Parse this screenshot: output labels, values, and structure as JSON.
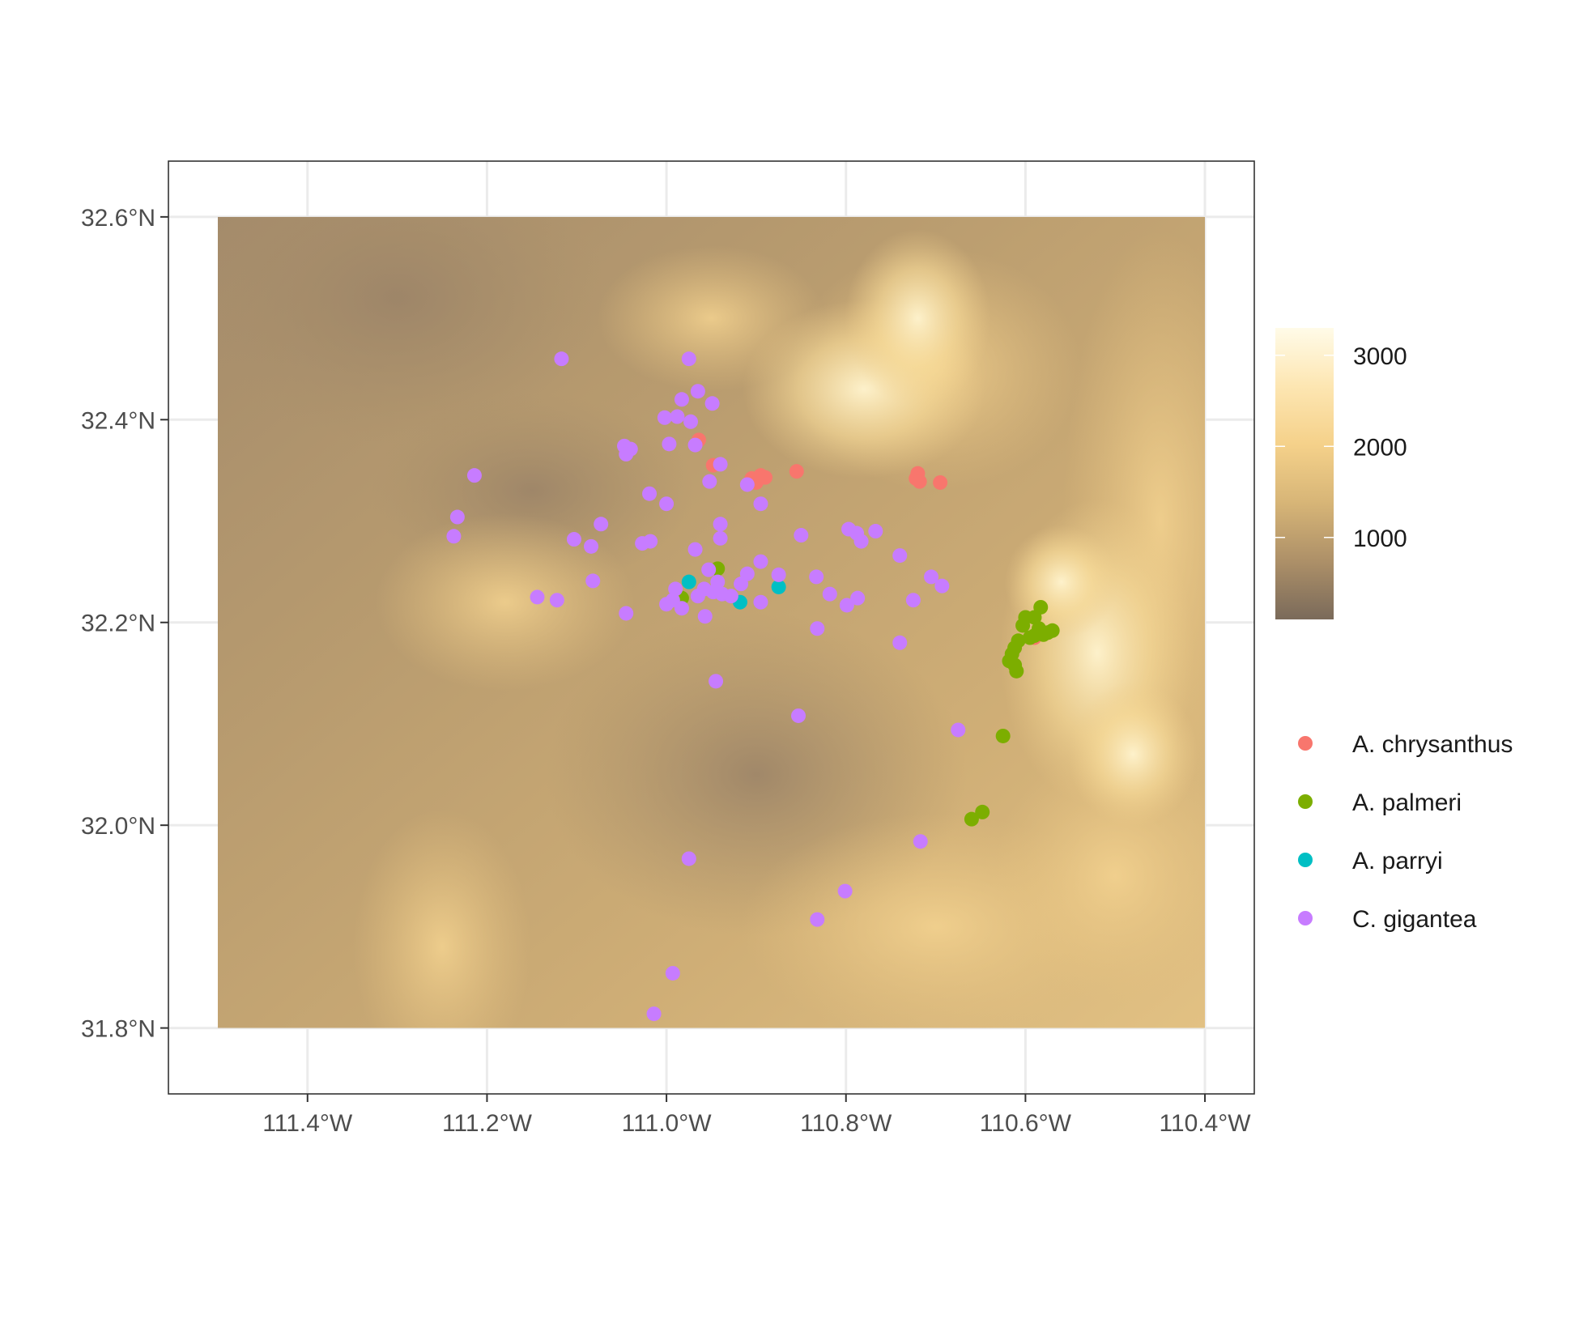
{
  "chart_data": {
    "type": "scatter",
    "title": "",
    "xlabel": "",
    "ylabel": "",
    "xlim": [
      -111.555,
      -110.345
    ],
    "ylim": [
      31.735,
      32.655
    ],
    "raster_extent": {
      "lon": [
        -111.5,
        -110.4
      ],
      "lat": [
        31.8,
        32.6
      ]
    },
    "grid": true,
    "x_ticks": [
      {
        "value": -111.4,
        "label": "111.4°W"
      },
      {
        "value": -111.2,
        "label": "111.2°W"
      },
      {
        "value": -111.0,
        "label": "111.0°W"
      },
      {
        "value": -110.8,
        "label": "110.8°W"
      },
      {
        "value": -110.6,
        "label": "110.6°W"
      },
      {
        "value": -110.4,
        "label": "110.4°W"
      }
    ],
    "y_ticks": [
      {
        "value": 32.6,
        "label": "32.6°N"
      },
      {
        "value": 32.4,
        "label": "32.4°N"
      },
      {
        "value": 32.2,
        "label": "32.2°N"
      },
      {
        "value": 32.0,
        "label": "32.0°N"
      },
      {
        "value": 31.8,
        "label": "31.8°N"
      }
    ],
    "colorbar": {
      "range": [
        100,
        3300
      ],
      "ticks": [
        {
          "value": 1000,
          "label": "1000"
        },
        {
          "value": 2000,
          "label": "2000"
        },
        {
          "value": 3000,
          "label": "3000"
        }
      ],
      "colors": [
        "#7a6a5a",
        "#ad9068",
        "#d7b577",
        "#f5d18a",
        "#fde6b2",
        "#fffbe8"
      ]
    },
    "legend_position": "right",
    "series": [
      {
        "name": "A. chrysanthus",
        "color": "#f8766d",
        "points": [
          [
            -110.964,
            32.38
          ],
          [
            -110.948,
            32.355
          ],
          [
            -110.905,
            32.342
          ],
          [
            -110.9,
            32.338
          ],
          [
            -110.895,
            32.345
          ],
          [
            -110.89,
            32.343
          ],
          [
            -110.855,
            32.349
          ],
          [
            -110.72,
            32.347
          ],
          [
            -110.722,
            32.342
          ],
          [
            -110.718,
            32.339
          ],
          [
            -110.695,
            32.338
          ],
          [
            -110.59,
            32.185
          ]
        ]
      },
      {
        "name": "A. palmeri",
        "color": "#7cae00",
        "points": [
          [
            -110.943,
            32.253
          ],
          [
            -110.983,
            32.224
          ],
          [
            -110.583,
            32.215
          ],
          [
            -110.59,
            32.205
          ],
          [
            -110.6,
            32.205
          ],
          [
            -110.603,
            32.197
          ],
          [
            -110.585,
            32.194
          ],
          [
            -110.575,
            32.19
          ],
          [
            -110.57,
            32.192
          ],
          [
            -110.58,
            32.188
          ],
          [
            -110.59,
            32.187
          ],
          [
            -110.595,
            32.185
          ],
          [
            -110.608,
            32.182
          ],
          [
            -110.612,
            32.175
          ],
          [
            -110.615,
            32.169
          ],
          [
            -110.618,
            32.162
          ],
          [
            -110.612,
            32.158
          ],
          [
            -110.61,
            32.152
          ],
          [
            -110.625,
            32.088
          ],
          [
            -110.648,
            32.013
          ],
          [
            -110.66,
            32.006
          ]
        ]
      },
      {
        "name": "A. parryi",
        "color": "#00bfc4",
        "points": [
          [
            -110.975,
            32.24
          ],
          [
            -110.918,
            32.22
          ],
          [
            -110.875,
            32.235
          ]
        ]
      },
      {
        "name": "C. gigantea",
        "color": "#c77cff",
        "points": [
          [
            -111.117,
            32.46
          ],
          [
            -110.975,
            32.46
          ],
          [
            -110.965,
            32.428
          ],
          [
            -110.983,
            32.42
          ],
          [
            -110.949,
            32.416
          ],
          [
            -110.988,
            32.403
          ],
          [
            -110.973,
            32.398
          ],
          [
            -111.002,
            32.402
          ],
          [
            -111.047,
            32.374
          ],
          [
            -111.04,
            32.371
          ],
          [
            -111.045,
            32.366
          ],
          [
            -110.997,
            32.376
          ],
          [
            -110.968,
            32.375
          ],
          [
            -110.94,
            32.356
          ],
          [
            -111.214,
            32.345
          ],
          [
            -110.952,
            32.339
          ],
          [
            -110.91,
            32.336
          ],
          [
            -111.019,
            32.327
          ],
          [
            -110.895,
            32.317
          ],
          [
            -111.0,
            32.317
          ],
          [
            -111.233,
            32.304
          ],
          [
            -110.94,
            32.297
          ],
          [
            -111.073,
            32.297
          ],
          [
            -110.797,
            32.292
          ],
          [
            -110.788,
            32.288
          ],
          [
            -110.767,
            32.29
          ],
          [
            -111.237,
            32.285
          ],
          [
            -110.85,
            32.286
          ],
          [
            -111.103,
            32.282
          ],
          [
            -110.783,
            32.28
          ],
          [
            -110.94,
            32.283
          ],
          [
            -111.027,
            32.278
          ],
          [
            -111.018,
            32.28
          ],
          [
            -111.084,
            32.275
          ],
          [
            -110.968,
            32.272
          ],
          [
            -110.74,
            32.266
          ],
          [
            -110.895,
            32.26
          ],
          [
            -110.953,
            32.252
          ],
          [
            -110.91,
            32.248
          ],
          [
            -110.875,
            32.247
          ],
          [
            -110.833,
            32.245
          ],
          [
            -110.705,
            32.245
          ],
          [
            -110.943,
            32.24
          ],
          [
            -110.917,
            32.238
          ],
          [
            -111.082,
            32.241
          ],
          [
            -110.693,
            32.236
          ],
          [
            -110.99,
            32.233
          ],
          [
            -110.958,
            32.233
          ],
          [
            -110.948,
            32.23
          ],
          [
            -110.938,
            32.228
          ],
          [
            -110.928,
            32.226
          ],
          [
            -110.965,
            32.226
          ],
          [
            -110.993,
            32.222
          ],
          [
            -110.818,
            32.228
          ],
          [
            -110.787,
            32.224
          ],
          [
            -110.799,
            32.217
          ],
          [
            -110.725,
            32.222
          ],
          [
            -111.0,
            32.218
          ],
          [
            -110.895,
            32.22
          ],
          [
            -111.144,
            32.225
          ],
          [
            -111.122,
            32.222
          ],
          [
            -110.983,
            32.214
          ],
          [
            -111.045,
            32.209
          ],
          [
            -110.957,
            32.206
          ],
          [
            -110.832,
            32.194
          ],
          [
            -110.74,
            32.18
          ],
          [
            -110.945,
            32.142
          ],
          [
            -110.853,
            32.108
          ],
          [
            -110.675,
            32.094
          ],
          [
            -110.717,
            31.984
          ],
          [
            -110.975,
            31.967
          ],
          [
            -110.801,
            31.935
          ],
          [
            -110.832,
            31.907
          ],
          [
            -110.993,
            31.854
          ],
          [
            -111.014,
            31.814
          ]
        ]
      }
    ]
  }
}
